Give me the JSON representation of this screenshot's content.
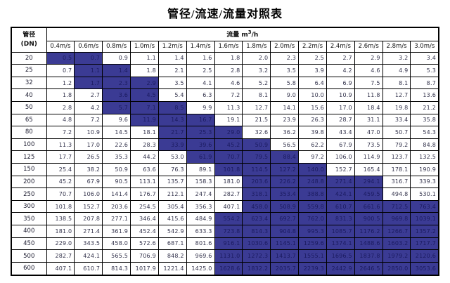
{
  "title": "管径/流速/流量对照表",
  "table": {
    "corner_header": {
      "line1": "管径",
      "line2": "(DN)"
    },
    "flow_header": {
      "prefix": "流量 m",
      "sup": "3",
      "suffix": "/h"
    },
    "velocity_columns": [
      "0.4m/s",
      "0.6m/s",
      "0.8m/s",
      "1.0m/s",
      "1.2m/s",
      "1.4m/s",
      "1.6m/s",
      "1.8m/s",
      "2.0m/s",
      "2.2m/s",
      "2.4m/s",
      "2.6m/s",
      "2.8m/s",
      "3.0m/s"
    ],
    "colors": {
      "highlight_bg": "#3b3b94",
      "highlight_text": "#1b1b60",
      "value_text": "#33334c",
      "header_text": "#111111",
      "border": "#000000"
    },
    "rows": [
      {
        "dn": "20",
        "values": [
          "0.5",
          "0.7",
          "0.9",
          "1.1",
          "1.4",
          "1.6",
          "1.8",
          "2.0",
          "2.3",
          "2.5",
          "2.7",
          "2.9",
          "3.2",
          "3.4"
        ],
        "highlight": [
          0,
          1
        ]
      },
      {
        "dn": "25",
        "values": [
          "0.7",
          "1.1",
          "1.4",
          "1.8",
          "2.1",
          "2.5",
          "2.8",
          "3.2",
          "3.5",
          "3.9",
          "4.2",
          "4.6",
          "4.9",
          "5.3"
        ],
        "highlight": [
          1,
          2
        ]
      },
      {
        "dn": "32",
        "values": [
          "1.2",
          "1.7",
          "2.3",
          "2.9",
          "3.5",
          "4.1",
          "4.6",
          "5.2",
          "5.8",
          "6.4",
          "6.9",
          "7.5",
          "8.1",
          "8.7"
        ],
        "highlight": [
          1,
          2,
          3
        ]
      },
      {
        "dn": "40",
        "values": [
          "1.8",
          "2.7",
          "3.6",
          "4.5",
          "5.4",
          "6.3",
          "7.2",
          "8.1",
          "9.0",
          "10.0",
          "10.9",
          "11.8",
          "12.7",
          "13.6"
        ],
        "highlight": [
          2,
          3
        ]
      },
      {
        "dn": "50",
        "values": [
          "2.8",
          "4.2",
          "5.7",
          "7.1",
          "8.5",
          "9.9",
          "11.3",
          "12.7",
          "14.1",
          "15.6",
          "17.0",
          "18.4",
          "19.8",
          "21.2"
        ],
        "highlight": [
          2,
          3,
          4
        ]
      },
      {
        "dn": "65",
        "values": [
          "4.8",
          "7.2",
          "9.6",
          "11.9",
          "14.3",
          "16.7",
          "19.1",
          "21.5",
          "23.9",
          "26.3",
          "28.7",
          "31.1",
          "33.4",
          "35.8"
        ],
        "highlight": [
          3,
          4,
          5
        ]
      },
      {
        "dn": "80",
        "values": [
          "7.2",
          "10.9",
          "14.5",
          "18.1",
          "21.7",
          "25.3",
          "29.0",
          "32.6",
          "36.2",
          "39.8",
          "43.4",
          "47.0",
          "50.7",
          "54.3"
        ],
        "highlight": [
          4,
          5,
          6
        ]
      },
      {
        "dn": "100",
        "values": [
          "11.3",
          "17.0",
          "22.6",
          "28.3",
          "33.9",
          "39.6",
          "45.2",
          "50.9",
          "56.5",
          "62.2",
          "67.9",
          "73.5",
          "79.2",
          "84.8"
        ],
        "highlight": [
          4,
          5,
          6,
          7
        ]
      },
      {
        "dn": "125",
        "values": [
          "17.7",
          "26.5",
          "35.3",
          "44.2",
          "53.0",
          "61.9",
          "70.7",
          "79.5",
          "88.4",
          "97.2",
          "106.0",
          "114.9",
          "123.7",
          "132.5"
        ],
        "highlight": [
          5,
          6,
          7,
          8
        ]
      },
      {
        "dn": "150",
        "values": [
          "25.4",
          "38.2",
          "50.9",
          "63.6",
          "76.3",
          "89.1",
          "101.8",
          "114.5",
          "127.2",
          "140.0",
          "152.7",
          "165.4",
          "178.1",
          "190.9"
        ],
        "highlight": [
          6,
          7,
          8,
          9
        ]
      },
      {
        "dn": "200",
        "values": [
          "45.2",
          "67.9",
          "90.5",
          "113.1",
          "135.7",
          "158.3",
          "181.0",
          "203.6",
          "226.2",
          "248.8",
          "271.4",
          "294.1",
          "316.7",
          "339.3"
        ],
        "highlight": [
          7,
          8,
          9,
          10,
          11
        ]
      },
      {
        "dn": "250",
        "values": [
          "70.7",
          "106.0",
          "141.4",
          "176.7",
          "212.1",
          "247.4",
          "282.7",
          "318.1",
          "353.4",
          "388.8",
          "424.1",
          "459.5",
          "494.8",
          "530.1"
        ],
        "highlight": [
          7,
          8,
          9,
          10,
          11
        ]
      },
      {
        "dn": "300",
        "values": [
          "101.8",
          "152.7",
          "203.6",
          "254.5",
          "305.4",
          "356.3",
          "407.1",
          "458.0",
          "508.9",
          "559.8",
          "610.7",
          "661.6",
          "712.5",
          "763.4"
        ],
        "highlight": [
          7,
          8,
          9,
          10,
          11,
          12,
          13
        ]
      },
      {
        "dn": "350",
        "values": [
          "138.5",
          "207.8",
          "277.1",
          "346.4",
          "415.6",
          "484.9",
          "554.2",
          "623.4",
          "692.7",
          "762.0",
          "831.3",
          "900.5",
          "969.8",
          "1039.1"
        ],
        "highlight": [
          6,
          7,
          8,
          9,
          10,
          11,
          12,
          13
        ]
      },
      {
        "dn": "400",
        "values": [
          "181.0",
          "271.4",
          "361.9",
          "452.4",
          "542.9",
          "633.3",
          "723.8",
          "814.3",
          "904.8",
          "995.3",
          "1085.7",
          "1176.2",
          "1266.7",
          "1357.2"
        ],
        "highlight": [
          6,
          7,
          8,
          9,
          10,
          11,
          12,
          13
        ]
      },
      {
        "dn": "450",
        "values": [
          "229.0",
          "343.5",
          "458.0",
          "572.6",
          "687.1",
          "801.6",
          "916.1",
          "1030.6",
          "1145.1",
          "1259.6",
          "1374.1",
          "1488.6",
          "1603.2",
          "1717.7"
        ],
        "highlight": [
          6,
          7,
          8,
          9,
          10,
          11,
          12,
          13
        ]
      },
      {
        "dn": "500",
        "values": [
          "282.7",
          "424.1",
          "565.5",
          "706.9",
          "848.2",
          "969.6",
          "1131.0",
          "1272.3",
          "1413.7",
          "1555.1",
          "1696.5",
          "1837.8",
          "1979.2",
          "2120.6"
        ],
        "highlight": [
          6,
          7,
          8,
          9,
          10,
          11,
          12,
          13
        ]
      },
      {
        "dn": "600",
        "values": [
          "407.1",
          "610.7",
          "814.3",
          "1017.9",
          "1221.4",
          "1425.0",
          "1628.6",
          "1832.2",
          "2035.7",
          "2239.3",
          "2442.9",
          "2646.5",
          "2850.0",
          "3053.6"
        ],
        "highlight": [
          6,
          7,
          8,
          9,
          10,
          11,
          12,
          13
        ]
      }
    ]
  }
}
